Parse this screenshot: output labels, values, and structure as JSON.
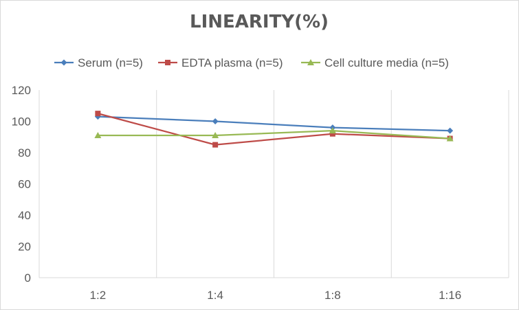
{
  "chart_data": {
    "type": "line",
    "title": "LINEARITY(%)",
    "xlabel": "",
    "ylabel": "",
    "categories": [
      "1:2",
      "1:4",
      "1:8",
      "1:16"
    ],
    "ylim": [
      0,
      120
    ],
    "yticks": [
      0,
      20,
      40,
      60,
      80,
      100,
      120
    ],
    "grid": "vertical category separators",
    "legend_position": "top",
    "series": [
      {
        "name": "Serum (n=5)",
        "values": [
          103,
          100,
          96,
          94
        ],
        "color": "#4a7ebb",
        "marker": "diamond"
      },
      {
        "name": "EDTA plasma (n=5)",
        "values": [
          105,
          85,
          92,
          89
        ],
        "color": "#be4b48",
        "marker": "square"
      },
      {
        "name": "Cell culture media (n=5)",
        "values": [
          91,
          91,
          94,
          89
        ],
        "color": "#98b954",
        "marker": "triangle"
      }
    ]
  }
}
